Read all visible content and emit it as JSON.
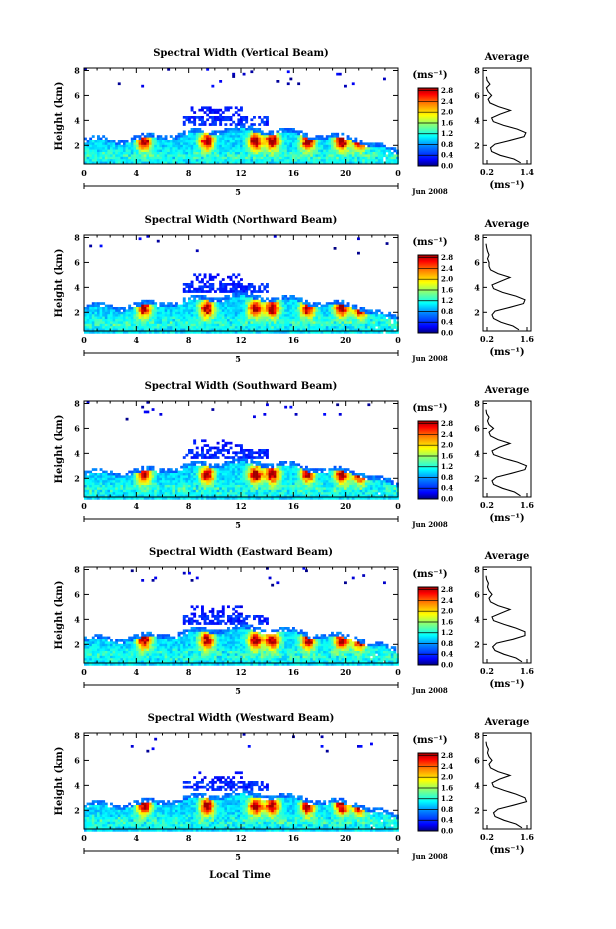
{
  "figure": {
    "xlabel": "Local Time",
    "ylabel": "Height (km)",
    "date_label": "Jun 2008",
    "day_label": "5",
    "unit": "(ms⁻¹)",
    "avg_title": "Average"
  },
  "chart_data": [
    {
      "type": "heatmap",
      "title": "Spectral Width (Vertical Beam)",
      "x_ticks": [
        "0",
        "4",
        "8",
        "12",
        "16",
        "20",
        "0"
      ],
      "y_ticks": [
        "2",
        "4",
        "6",
        "8"
      ],
      "xlim": [
        0,
        24
      ],
      "ylim": [
        0.5,
        8.2
      ],
      "colorbar": {
        "ticks": [
          "0.0",
          "0.4",
          "0.8",
          "1.2",
          "1.6",
          "2.0",
          "2.4",
          "2.8"
        ],
        "range": [
          0,
          2.9
        ]
      },
      "profile": {
        "title": "Average",
        "x_ticks": [
          "0.2",
          "1.4"
        ],
        "xlim": [
          0.1,
          1.5
        ],
        "ylim": [
          0.5,
          8.2
        ],
        "y_ticks": [
          "2",
          "4",
          "6",
          "8"
        ],
        "height": [
          0.6,
          0.9,
          1.2,
          1.5,
          1.8,
          2.1,
          2.4,
          2.7,
          3.0,
          3.3,
          3.6,
          3.9,
          4.2,
          4.5,
          4.8,
          5.1,
          5.4,
          5.7,
          6.0,
          6.3,
          6.6,
          6.9,
          7.2,
          7.5
        ],
        "width": [
          1.2,
          1.0,
          0.6,
          0.35,
          0.32,
          0.45,
          0.9,
          1.3,
          1.35,
          1.1,
          0.7,
          0.4,
          0.35,
          0.6,
          0.9,
          0.55,
          0.3,
          0.25,
          0.35,
          0.25,
          0.2,
          0.3,
          0.22,
          0.2
        ]
      },
      "grid": false
    },
    {
      "type": "heatmap",
      "title": "Spectral Width (Northward Beam)",
      "x_ticks": [
        "0",
        "4",
        "8",
        "12",
        "16",
        "20",
        "0"
      ],
      "y_ticks": [
        "2",
        "4",
        "6",
        "8"
      ],
      "xlim": [
        0,
        24
      ],
      "ylim": [
        0.5,
        8.2
      ],
      "colorbar": {
        "ticks": [
          "0.0",
          "0.4",
          "0.8",
          "1.2",
          "1.6",
          "2.0",
          "2.4",
          "2.8"
        ],
        "range": [
          0,
          2.9
        ]
      },
      "profile": {
        "title": "Average",
        "x_ticks": [
          "0.2",
          "1.6"
        ],
        "xlim": [
          0.1,
          1.7
        ],
        "ylim": [
          0.5,
          8.2
        ],
        "y_ticks": [
          "2",
          "4",
          "6",
          "8"
        ],
        "height": [
          0.6,
          0.9,
          1.2,
          1.5,
          1.8,
          2.1,
          2.4,
          2.7,
          3.0,
          3.3,
          3.6,
          3.9,
          4.2,
          4.5,
          4.8,
          5.1,
          5.4,
          5.7,
          6.0,
          6.3,
          6.6,
          6.9,
          7.2,
          7.5
        ],
        "width": [
          1.3,
          1.1,
          0.7,
          0.45,
          0.4,
          0.5,
          1.0,
          1.45,
          1.5,
          1.2,
          0.75,
          0.45,
          0.4,
          0.7,
          1.0,
          0.6,
          0.35,
          0.3,
          0.3,
          0.25,
          0.3,
          0.25,
          0.22,
          0.2
        ]
      },
      "grid": false
    },
    {
      "type": "heatmap",
      "title": "Spectral Width (Southward Beam)",
      "x_ticks": [
        "0",
        "4",
        "8",
        "12",
        "16",
        "20",
        "0"
      ],
      "y_ticks": [
        "2",
        "4",
        "6",
        "8"
      ],
      "xlim": [
        0,
        24
      ],
      "ylim": [
        0.5,
        8.2
      ],
      "colorbar": {
        "ticks": [
          "0.0",
          "0.4",
          "0.8",
          "1.2",
          "1.6",
          "2.0",
          "2.4",
          "2.8"
        ],
        "range": [
          0,
          2.9
        ]
      },
      "profile": {
        "title": "Average",
        "x_ticks": [
          "0.2",
          "1.6"
        ],
        "xlim": [
          0.1,
          1.7
        ],
        "ylim": [
          0.5,
          8.2
        ],
        "y_ticks": [
          "2",
          "4",
          "6",
          "8"
        ],
        "height": [
          0.6,
          0.9,
          1.2,
          1.5,
          1.8,
          2.1,
          2.4,
          2.7,
          3.0,
          3.3,
          3.6,
          3.9,
          4.2,
          4.5,
          4.8,
          5.1,
          5.4,
          5.7,
          6.0,
          6.3,
          6.6,
          6.9,
          7.2,
          7.5
        ],
        "width": [
          1.35,
          1.15,
          0.75,
          0.45,
          0.4,
          0.55,
          1.05,
          1.5,
          1.55,
          1.25,
          0.8,
          0.45,
          0.4,
          0.65,
          1.0,
          0.6,
          0.35,
          0.3,
          0.45,
          0.3,
          0.25,
          0.3,
          0.22,
          0.2
        ]
      },
      "grid": false
    },
    {
      "type": "heatmap",
      "title": "Spectral Width (Eastward Beam)",
      "x_ticks": [
        "0",
        "4",
        "8",
        "12",
        "16",
        "20",
        "0"
      ],
      "y_ticks": [
        "2",
        "4",
        "6",
        "8"
      ],
      "xlim": [
        0,
        24
      ],
      "ylim": [
        0.5,
        8.2
      ],
      "colorbar": {
        "ticks": [
          "0.0",
          "0.4",
          "0.8",
          "1.2",
          "1.6",
          "2.0",
          "2.4",
          "2.8"
        ],
        "range": [
          0,
          2.9
        ]
      },
      "profile": {
        "title": "Average",
        "x_ticks": [
          "0.2",
          "1.6"
        ],
        "xlim": [
          0.1,
          1.7
        ],
        "ylim": [
          0.5,
          8.2
        ],
        "y_ticks": [
          "2",
          "4",
          "6",
          "8"
        ],
        "height": [
          0.6,
          0.9,
          1.2,
          1.5,
          1.8,
          2.1,
          2.4,
          2.7,
          3.0,
          3.3,
          3.6,
          3.9,
          4.2,
          4.5,
          4.8,
          5.1,
          5.4,
          5.7,
          6.0,
          6.3,
          6.6,
          6.9,
          7.2,
          7.5
        ],
        "width": [
          1.4,
          1.2,
          0.8,
          0.5,
          0.42,
          0.55,
          1.1,
          1.5,
          1.5,
          1.2,
          0.8,
          0.45,
          0.4,
          0.7,
          1.0,
          0.6,
          0.35,
          0.3,
          0.4,
          0.3,
          0.25,
          0.28,
          0.22,
          0.2
        ]
      },
      "grid": false
    },
    {
      "type": "heatmap",
      "title": "Spectral Width (Westward Beam)",
      "x_ticks": [
        "0",
        "4",
        "8",
        "12",
        "16",
        "20",
        "0"
      ],
      "y_ticks": [
        "2",
        "4",
        "6",
        "8"
      ],
      "xlim": [
        0,
        24
      ],
      "ylim": [
        0.5,
        8.2
      ],
      "colorbar": {
        "ticks": [
          "0.0",
          "0.4",
          "0.8",
          "1.2",
          "1.6",
          "2.0",
          "2.4",
          "2.8"
        ],
        "range": [
          0,
          2.9
        ]
      },
      "profile": {
        "title": "Average",
        "x_ticks": [
          "0.2",
          "1.6"
        ],
        "xlim": [
          0.1,
          1.7
        ],
        "ylim": [
          0.5,
          8.2
        ],
        "y_ticks": [
          "2",
          "4",
          "6",
          "8"
        ],
        "height": [
          0.6,
          0.9,
          1.2,
          1.5,
          1.8,
          2.1,
          2.4,
          2.7,
          3.0,
          3.3,
          3.6,
          3.9,
          4.2,
          4.5,
          4.8,
          5.1,
          5.4,
          5.7,
          6.0,
          6.3,
          6.6,
          6.9,
          7.2,
          7.5
        ],
        "width": [
          1.4,
          1.2,
          0.8,
          0.5,
          0.45,
          0.6,
          1.1,
          1.55,
          1.5,
          1.2,
          0.8,
          0.45,
          0.4,
          0.65,
          1.0,
          0.6,
          0.35,
          0.3,
          0.4,
          0.3,
          0.25,
          0.28,
          0.22,
          0.2
        ]
      },
      "grid": false
    }
  ]
}
